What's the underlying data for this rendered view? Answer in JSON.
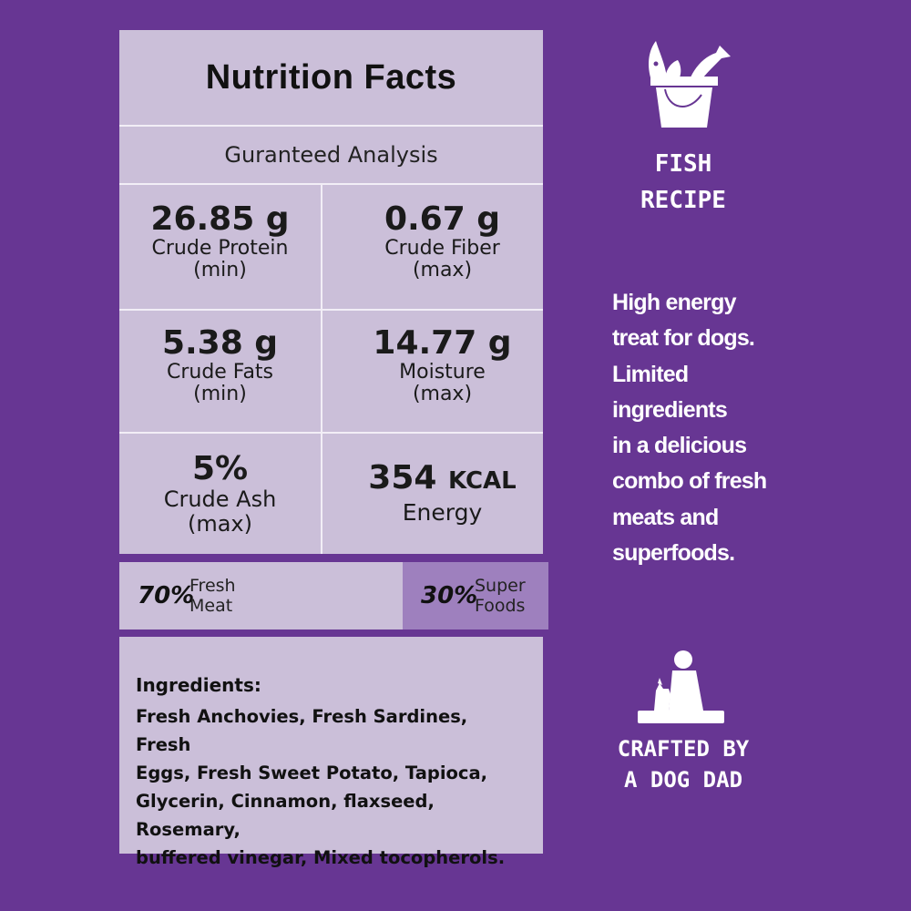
{
  "nutrition": {
    "title": "Nutrition Facts",
    "subtitle": "Guranteed Analysis",
    "items": [
      {
        "value": "26.85 g",
        "label": "Crude Protein",
        "qualifier": "(min)"
      },
      {
        "value": "0.67 g",
        "label": "Crude Fiber",
        "qualifier": "(max)"
      },
      {
        "value": "5.38 g",
        "label": "Crude Fats",
        "qualifier": "(min)"
      },
      {
        "value": "14.77 g",
        "label": "Moisture",
        "qualifier": "(max)"
      },
      {
        "value": "5%",
        "label": "Crude Ash",
        "qualifier": "(max)"
      },
      {
        "value": "354",
        "unit": "KCAL",
        "label": "Energy"
      }
    ]
  },
  "ratio": {
    "left": {
      "pct": "70%",
      "line1": "Fresh",
      "line2": "Meat"
    },
    "right": {
      "pct": "30%",
      "line1": "Super",
      "line2": "Foods"
    }
  },
  "ingredients": {
    "heading": "Ingredients:",
    "lines": [
      "Fresh Anchovies, Fresh Sardines, Fresh",
      "Eggs, Fresh Sweet Potato, Tapioca,",
      "Glycerin, Cinnamon, flaxseed, Rosemary,",
      "buffered vinegar, Mixed tocopherols."
    ]
  },
  "side": {
    "recipe_line1": "FISH",
    "recipe_line2": "RECIPE",
    "description_lines": [
      "High energy",
      "treat for dogs.",
      "Limited",
      "ingredients",
      "in a delicious",
      "combo of fresh",
      "meats and",
      "superfoods."
    ],
    "crafted_line1": "CRAFTED BY",
    "crafted_line2": "A DOG DAD",
    "icons": [
      "fish-bucket-icon",
      "dog-dad-icon"
    ]
  },
  "colors": {
    "background": "#673693",
    "panel": "#cbbfd9",
    "accent": "#9e80be",
    "text_light": "#ffffff"
  }
}
